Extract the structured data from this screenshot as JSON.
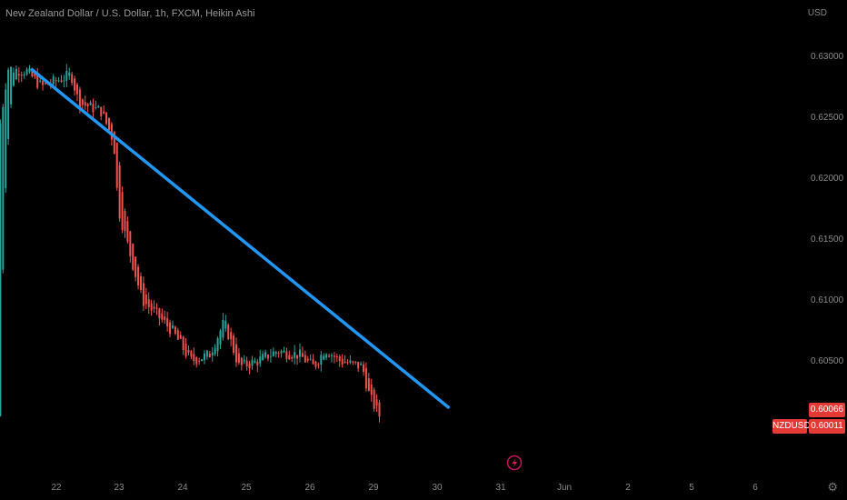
{
  "header": {
    "title": "New Zealand Dollar / U.S. Dollar, 1h, FXCM, Heikin Ashi"
  },
  "currency": "USD",
  "symbol": "NZDUSD",
  "badges": {
    "upper_price": "0.60066",
    "last_price": "0.60011"
  },
  "settings_icon": "gear-icon",
  "lightning_icon": "lightning-icon",
  "colors": {
    "up": "#26a69a",
    "down": "#ef5350",
    "trendline": "#2196f3",
    "background": "#000000",
    "badge": "#e53935"
  },
  "chart_data": {
    "type": "candlestick",
    "x_ticks": [
      "22",
      "23",
      "24",
      "25",
      "26",
      "29",
      "30",
      "31",
      "Jun",
      "2",
      "5",
      "6"
    ],
    "y_ticks": [
      "0.63000",
      "0.62500",
      "0.62000",
      "0.61500",
      "0.61000",
      "0.60500"
    ],
    "ylim": [
      0.5985,
      0.6325
    ],
    "price_path": [
      {
        "t": 0,
        "p": 0.6245
      },
      {
        "t": 0.1,
        "p": 0.629
      },
      {
        "t": 0.35,
        "p": 0.6288
      },
      {
        "t": 0.55,
        "p": 0.6275
      },
      {
        "t": 0.95,
        "p": 0.6285
      },
      {
        "t": 1.05,
        "p": 0.6262
      },
      {
        "t": 1.35,
        "p": 0.6255
      },
      {
        "t": 1.42,
        "p": 0.6245
      },
      {
        "t": 1.52,
        "p": 0.623
      },
      {
        "t": 1.58,
        "p": 0.6175
      },
      {
        "t": 1.9,
        "p": 0.61
      },
      {
        "t": 2.3,
        "p": 0.6075
      },
      {
        "t": 2.55,
        "p": 0.605
      },
      {
        "t": 2.8,
        "p": 0.6055
      },
      {
        "t": 3.0,
        "p": 0.6082
      },
      {
        "t": 3.2,
        "p": 0.6045
      },
      {
        "t": 3.45,
        "p": 0.605
      },
      {
        "t": 3.7,
        "p": 0.6058
      },
      {
        "t": 4.0,
        "p": 0.6055
      },
      {
        "t": 4.2,
        "p": 0.6045
      },
      {
        "t": 4.35,
        "p": 0.606
      },
      {
        "t": 4.55,
        "p": 0.605
      },
      {
        "t": 4.85,
        "p": 0.6045
      },
      {
        "t": 4.95,
        "p": 0.602
      },
      {
        "t": 5.08,
        "p": 0.6005
      }
    ],
    "trendline": {
      "start": {
        "t": -0.38,
        "p": 0.6289
      },
      "end": {
        "t": 6.16,
        "p": 0.6012
      },
      "color": "#2196f3"
    },
    "grid": false
  }
}
